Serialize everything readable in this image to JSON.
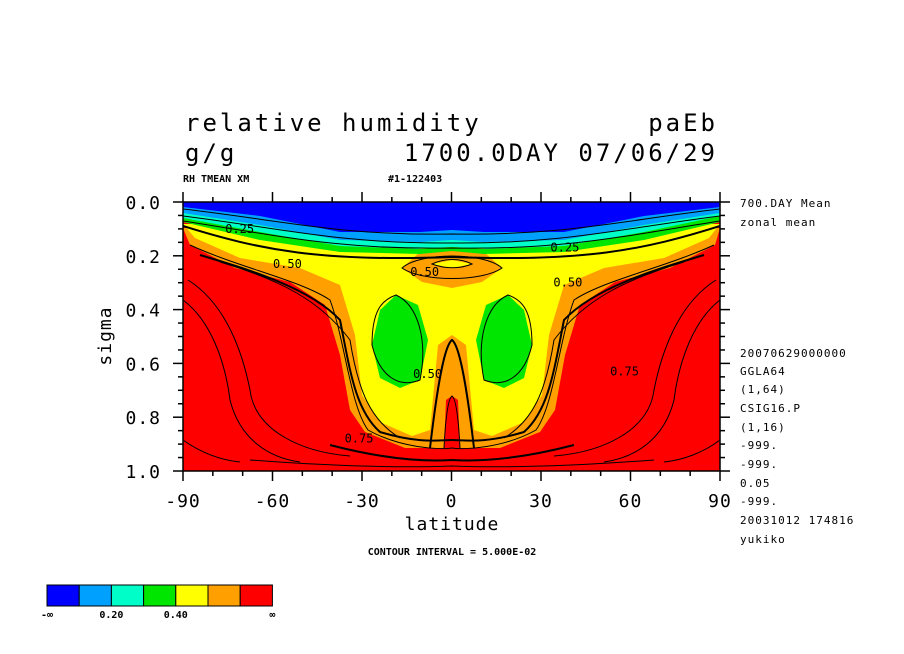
{
  "header": {
    "title": "relative humidity",
    "code": "paEb",
    "units": "g/g",
    "time": "1700.0DAY 07/06/29",
    "var_name": "RH TMEAN XM",
    "run_id": "#1-122403"
  },
  "footer": {
    "contour_interval": "CONTOUR INTERVAL = 5.000E-02"
  },
  "info": {
    "lines_top": [
      "700.DAY Mean",
      "zonal mean"
    ],
    "lines_bottom": [
      "20070629000000",
      "GGLA64",
      "(1,64)",
      "CSIG16.P",
      "(1,16)",
      "-999.",
      "-999.",
      "0.05",
      "-999.",
      "20031012 174816",
      "yukiko"
    ]
  },
  "chart_data": {
    "type": "heatmap",
    "title": "relative humidity",
    "xlabel": "latitude",
    "ylabel": "sigma",
    "xlim": [
      -90,
      90
    ],
    "ylim": [
      1.0,
      0.0
    ],
    "x_ticks": [
      "-90",
      "-60",
      "-30",
      "0",
      "30",
      "60",
      "90"
    ],
    "x_tick_values": [
      -90,
      -60,
      -30,
      0,
      30,
      60,
      90
    ],
    "y_ticks": [
      "0.0",
      "0.2",
      "0.4",
      "0.6",
      "0.8",
      "1.0"
    ],
    "y_tick_values": [
      0.0,
      0.2,
      0.4,
      0.6,
      0.8,
      1.0
    ],
    "contour_interval": 0.05,
    "contour_labels": [
      {
        "text": "0.25",
        "lat": -71,
        "sigma": 0.1
      },
      {
        "text": "0.25",
        "lat": 38,
        "sigma": 0.17
      },
      {
        "text": "0.50",
        "lat": -55,
        "sigma": 0.23
      },
      {
        "text": "0.50",
        "lat": -9,
        "sigma": 0.26
      },
      {
        "text": "0.50",
        "lat": 39,
        "sigma": 0.3
      },
      {
        "text": "0.50",
        "lat": -8,
        "sigma": 0.64
      },
      {
        "text": "0.75",
        "lat": 58,
        "sigma": 0.63
      },
      {
        "text": "0.75",
        "lat": -31,
        "sigma": 0.88
      }
    ],
    "colorbar": {
      "colors": [
        "#0000ff",
        "#00a0ff",
        "#00ffc8",
        "#00e600",
        "#ffff00",
        "#ffa000",
        "#ff0000"
      ],
      "labels": [
        "-∞",
        "0.20",
        "0.40",
        "∞"
      ],
      "label_positions": [
        0,
        2,
        4,
        7
      ],
      "boundaries": [
        0.2,
        0.3,
        0.4,
        0.5,
        0.6,
        0.7
      ]
    }
  }
}
